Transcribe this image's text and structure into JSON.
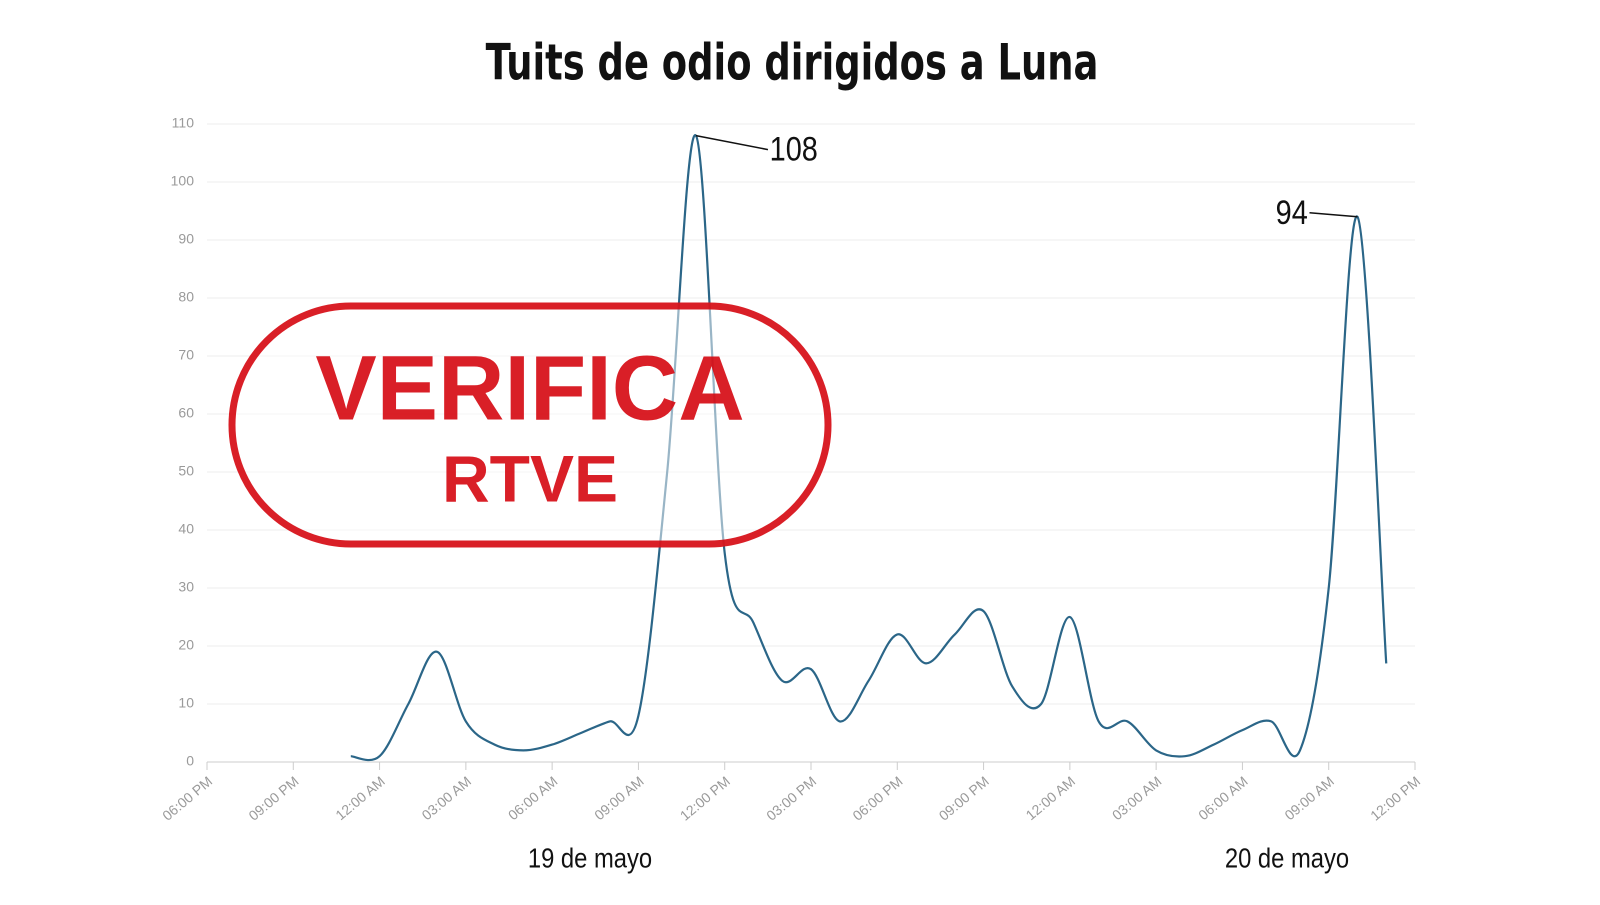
{
  "chart_data": {
    "type": "line",
    "title": "Tuits de odio dirigidos a Luna",
    "x": [
      5,
      6,
      7,
      8,
      9,
      10,
      11,
      12,
      13,
      14,
      15,
      16,
      17,
      18,
      19,
      20,
      21,
      22,
      23,
      24,
      25,
      26,
      27,
      28,
      29,
      30,
      31,
      32,
      33,
      34,
      35,
      36,
      37,
      38,
      39,
      40,
      41
    ],
    "series": [
      {
        "color": "#2b6688",
        "values": [
          1,
          1,
          10,
          19,
          7,
          3,
          2,
          3,
          5,
          7,
          8,
          50,
          108,
          36,
          24,
          14,
          16,
          7,
          14,
          22,
          17,
          22,
          26,
          13,
          10,
          25,
          7,
          7,
          2,
          1,
          3,
          5.5,
          7,
          2,
          30,
          94,
          17
        ],
        "value_labels": [
          null,
          null,
          null,
          null,
          null,
          null,
          null,
          null,
          null,
          null,
          null,
          null,
          "108",
          null,
          null,
          null,
          null,
          null,
          null,
          null,
          null,
          null,
          null,
          null,
          null,
          null,
          null,
          null,
          null,
          null,
          null,
          null,
          null,
          null,
          null,
          "94",
          null
        ]
      }
    ],
    "xlim": [
      0,
      42
    ],
    "xticks": [
      {
        "value": 0,
        "label": "06:00 PM"
      },
      {
        "value": 3,
        "label": "09:00 PM"
      },
      {
        "value": 6,
        "label": "12:00 AM"
      },
      {
        "value": 9,
        "label": "03:00 AM"
      },
      {
        "value": 12,
        "label": "06:00 AM"
      },
      {
        "value": 15,
        "label": "09:00 AM"
      },
      {
        "value": 18,
        "label": "12:00 PM"
      },
      {
        "value": 21,
        "label": "03:00 PM"
      },
      {
        "value": 24,
        "label": "06:00 PM"
      },
      {
        "value": 27,
        "label": "09:00 PM"
      },
      {
        "value": 30,
        "label": "12:00 AM"
      },
      {
        "value": 33,
        "label": "03:00 AM"
      },
      {
        "value": 36,
        "label": "06:00 AM"
      },
      {
        "value": 39,
        "label": "09:00 AM"
      },
      {
        "value": 42,
        "label": "12:00 PM"
      }
    ],
    "ylim": [
      0,
      110
    ],
    "yticks": [
      0,
      10,
      20,
      30,
      40,
      50,
      60,
      70,
      80,
      90,
      100,
      110
    ],
    "grid": true,
    "annotations": [
      "19 de mayo",
      "20 de mayo"
    ]
  },
  "watermark": {
    "line1": "VERIFICA",
    "line2": "RTVE"
  }
}
